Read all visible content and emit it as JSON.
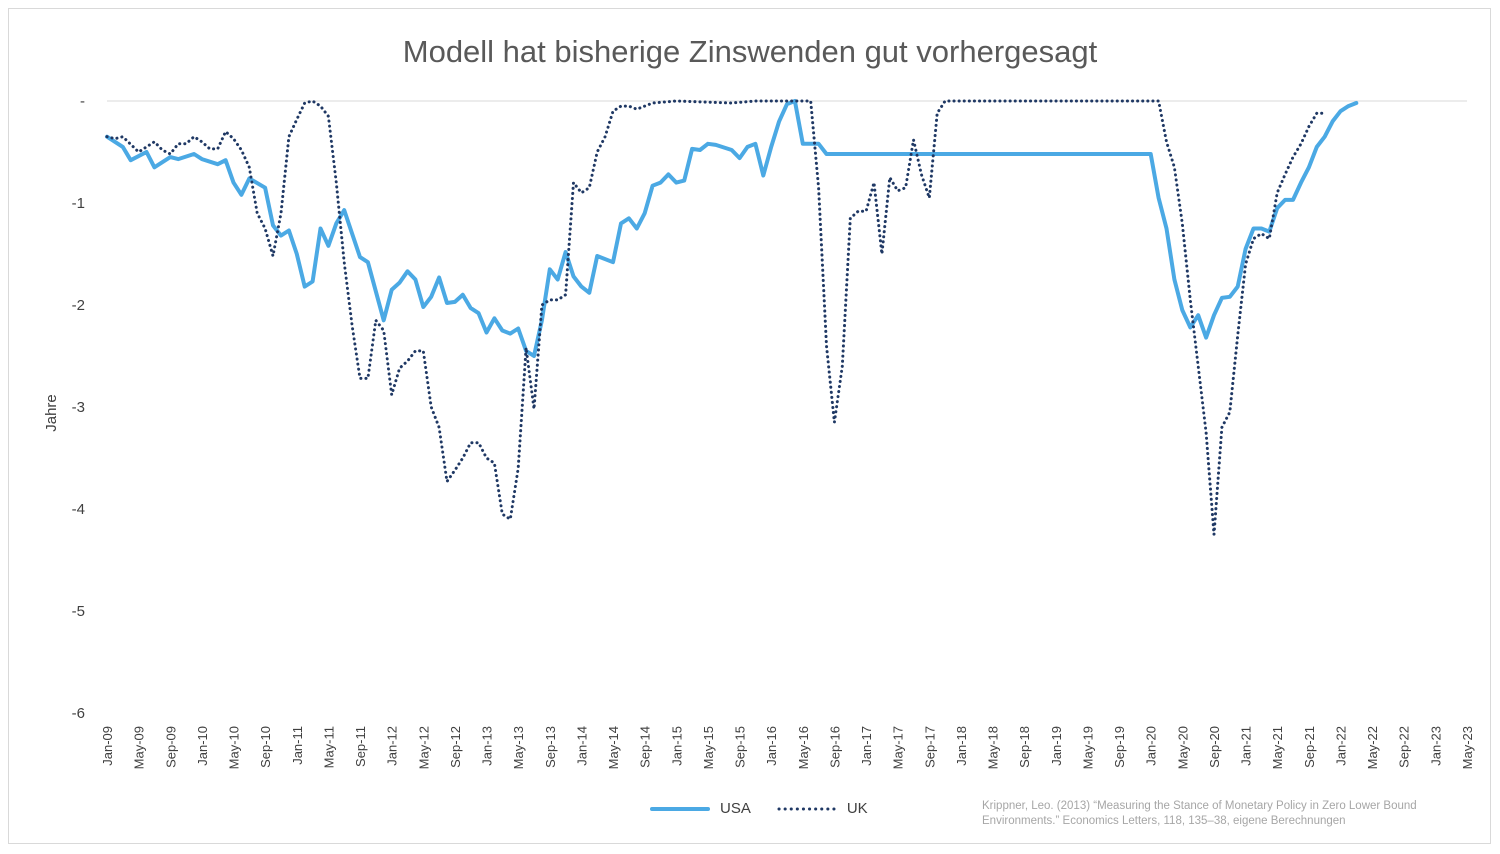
{
  "chart_data": {
    "type": "line",
    "title": "Modell hat bisherige Zinswenden gut vorhergesagt",
    "ylabel": "Jahre",
    "xlabel": "",
    "ylim": [
      -6,
      0
    ],
    "y_ticks": [
      0,
      -1,
      -2,
      -3,
      -4,
      -5,
      -6
    ],
    "y_tick_labels": [
      "-",
      "-1",
      "-2",
      "-3",
      "-4",
      "-5",
      "-6"
    ],
    "x_tick_labels": [
      "Jan-09",
      "May-09",
      "Sep-09",
      "Jan-10",
      "May-10",
      "Sep-10",
      "Jan-11",
      "May-11",
      "Sep-11",
      "Jan-12",
      "May-12",
      "Sep-12",
      "Jan-13",
      "May-13",
      "Sep-13",
      "Jan-14",
      "May-14",
      "Sep-14",
      "Jan-15",
      "May-15",
      "Sep-15",
      "Jan-16",
      "May-16",
      "Sep-16",
      "Jan-17",
      "May-17",
      "Sep-17",
      "Jan-18",
      "May-18",
      "Sep-18",
      "Jan-19",
      "May-19",
      "Sep-19",
      "Jan-20",
      "May-20",
      "Sep-20",
      "Jan-21",
      "May-21",
      "Sep-21",
      "Jan-22",
      "May-22",
      "Sep-22",
      "Jan-23",
      "May-23"
    ],
    "x_range": [
      "Jan-09",
      "May-23"
    ],
    "grid": "baseline only",
    "legend_position": "bottom-center",
    "series": [
      {
        "name": "USA",
        "color": "#4ba9e4",
        "style": "solid",
        "points": [
          [
            "Jan-09",
            -0.35
          ],
          [
            "Mar-09",
            -0.45
          ],
          [
            "Apr-09",
            -0.58
          ],
          [
            "Jun-09",
            -0.5
          ],
          [
            "Jul-09",
            -0.65
          ],
          [
            "Sep-09",
            -0.55
          ],
          [
            "Oct-09",
            -0.57
          ],
          [
            "Dec-09",
            -0.52
          ],
          [
            "Jan-10",
            -0.57
          ],
          [
            "Mar-10",
            -0.62
          ],
          [
            "Apr-10",
            -0.58
          ],
          [
            "May-10",
            -0.8
          ],
          [
            "Jun-10",
            -0.92
          ],
          [
            "Jul-10",
            -0.76
          ],
          [
            "Sep-10",
            -0.85
          ],
          [
            "Oct-10",
            -1.22
          ],
          [
            "Nov-10",
            -1.32
          ],
          [
            "Dec-10",
            -1.27
          ],
          [
            "Jan-11",
            -1.5
          ],
          [
            "Feb-11",
            -1.82
          ],
          [
            "Mar-11",
            -1.77
          ],
          [
            "Apr-11",
            -1.25
          ],
          [
            "May-11",
            -1.42
          ],
          [
            "Jun-11",
            -1.2
          ],
          [
            "Jul-11",
            -1.07
          ],
          [
            "Aug-11",
            -1.3
          ],
          [
            "Sep-11",
            -1.53
          ],
          [
            "Oct-11",
            -1.58
          ],
          [
            "Dec-11",
            -2.15
          ],
          [
            "Jan-12",
            -1.85
          ],
          [
            "Feb-12",
            -1.78
          ],
          [
            "Mar-12",
            -1.67
          ],
          [
            "Apr-12",
            -1.75
          ],
          [
            "May-12",
            -2.02
          ],
          [
            "Jun-12",
            -1.92
          ],
          [
            "Jul-12",
            -1.73
          ],
          [
            "Aug-12",
            -1.98
          ],
          [
            "Sep-12",
            -1.97
          ],
          [
            "Oct-12",
            -1.9
          ],
          [
            "Nov-12",
            -2.03
          ],
          [
            "Dec-12",
            -2.08
          ],
          [
            "Jan-13",
            -2.27
          ],
          [
            "Feb-13",
            -2.13
          ],
          [
            "Mar-13",
            -2.25
          ],
          [
            "Apr-13",
            -2.28
          ],
          [
            "May-13",
            -2.23
          ],
          [
            "Jun-13",
            -2.45
          ],
          [
            "Jul-13",
            -2.5
          ],
          [
            "Aug-13",
            -2.15
          ],
          [
            "Sep-13",
            -1.65
          ],
          [
            "Oct-13",
            -1.75
          ],
          [
            "Nov-13",
            -1.48
          ],
          [
            "Dec-13",
            -1.72
          ],
          [
            "Jan-14",
            -1.82
          ],
          [
            "Feb-14",
            -1.88
          ],
          [
            "Mar-14",
            -1.52
          ],
          [
            "May-14",
            -1.58
          ],
          [
            "Jun-14",
            -1.2
          ],
          [
            "Jul-14",
            -1.15
          ],
          [
            "Aug-14",
            -1.25
          ],
          [
            "Sep-14",
            -1.1
          ],
          [
            "Oct-14",
            -0.83
          ],
          [
            "Nov-14",
            -0.8
          ],
          [
            "Dec-14",
            -0.72
          ],
          [
            "Jan-15",
            -0.8
          ],
          [
            "Feb-15",
            -0.78
          ],
          [
            "Mar-15",
            -0.47
          ],
          [
            "Apr-15",
            -0.48
          ],
          [
            "May-15",
            -0.42
          ],
          [
            "Jun-15",
            -0.43
          ],
          [
            "Aug-15",
            -0.48
          ],
          [
            "Sep-15",
            -0.56
          ],
          [
            "Oct-15",
            -0.45
          ],
          [
            "Nov-15",
            -0.42
          ],
          [
            "Dec-15",
            -0.73
          ],
          [
            "Jan-16",
            -0.45
          ],
          [
            "Feb-16",
            -0.2
          ],
          [
            "Mar-16",
            -0.03
          ],
          [
            "Apr-16",
            0
          ],
          [
            "May-16",
            -0.42
          ],
          [
            "Jul-16",
            -0.42
          ],
          [
            "Aug-16",
            -0.52
          ],
          [
            "Jan-20",
            -0.52
          ],
          [
            "Feb-20",
            -0.95
          ],
          [
            "Mar-20",
            -1.25
          ],
          [
            "Apr-20",
            -1.75
          ],
          [
            "May-20",
            -2.05
          ],
          [
            "Jun-20",
            -2.22
          ],
          [
            "Jul-20",
            -2.1
          ],
          [
            "Aug-20",
            -2.32
          ],
          [
            "Sep-20",
            -2.1
          ],
          [
            "Oct-20",
            -1.93
          ],
          [
            "Nov-20",
            -1.92
          ],
          [
            "Dec-20",
            -1.82
          ],
          [
            "Jan-21",
            -1.45
          ],
          [
            "Feb-21",
            -1.25
          ],
          [
            "Mar-21",
            -1.25
          ],
          [
            "Apr-21",
            -1.28
          ],
          [
            "May-21",
            -1.05
          ],
          [
            "Jun-21",
            -0.97
          ],
          [
            "Jul-21",
            -0.97
          ],
          [
            "Aug-21",
            -0.8
          ],
          [
            "Sep-21",
            -0.65
          ],
          [
            "Oct-21",
            -0.45
          ],
          [
            "Nov-21",
            -0.35
          ],
          [
            "Dec-21",
            -0.2
          ],
          [
            "Jan-22",
            -0.1
          ],
          [
            "Feb-22",
            -0.05
          ],
          [
            "Mar-22",
            -0.02
          ]
        ]
      },
      {
        "name": "UK",
        "color": "#1f3864",
        "style": "dotted",
        "points": [
          [
            "Jan-09",
            -0.35
          ],
          [
            "Feb-09",
            -0.37
          ],
          [
            "Mar-09",
            -0.35
          ],
          [
            "May-09",
            -0.5
          ],
          [
            "Jun-09",
            -0.45
          ],
          [
            "Jul-09",
            -0.4
          ],
          [
            "Aug-09",
            -0.48
          ],
          [
            "Sep-09",
            -0.52
          ],
          [
            "Oct-09",
            -0.42
          ],
          [
            "Nov-09",
            -0.42
          ],
          [
            "Dec-09",
            -0.35
          ],
          [
            "Jan-10",
            -0.4
          ],
          [
            "Feb-10",
            -0.47
          ],
          [
            "Mar-10",
            -0.47
          ],
          [
            "Apr-10",
            -0.3
          ],
          [
            "May-10",
            -0.37
          ],
          [
            "Jun-10",
            -0.48
          ],
          [
            "Jul-10",
            -0.65
          ],
          [
            "Aug-10",
            -1.1
          ],
          [
            "Sep-10",
            -1.25
          ],
          [
            "Oct-10",
            -1.52
          ],
          [
            "Nov-10",
            -1.1
          ],
          [
            "Dec-10",
            -0.35
          ],
          [
            "Jan-11",
            -0.18
          ],
          [
            "Feb-11",
            -0.02
          ],
          [
            "Mar-11",
            0
          ],
          [
            "Apr-11",
            -0.05
          ],
          [
            "May-11",
            -0.15
          ],
          [
            "Jun-11",
            -0.8
          ],
          [
            "Jul-11",
            -1.58
          ],
          [
            "Aug-11",
            -2.2
          ],
          [
            "Sep-11",
            -2.72
          ],
          [
            "Oct-11",
            -2.72
          ],
          [
            "Nov-11",
            -2.15
          ],
          [
            "Dec-11",
            -2.25
          ],
          [
            "Jan-12",
            -2.88
          ],
          [
            "Feb-12",
            -2.62
          ],
          [
            "Mar-12",
            -2.55
          ],
          [
            "Apr-12",
            -2.45
          ],
          [
            "May-12",
            -2.45
          ],
          [
            "Jun-12",
            -3.0
          ],
          [
            "Jul-12",
            -3.2
          ],
          [
            "Aug-12",
            -3.73
          ],
          [
            "Sep-12",
            -3.62
          ],
          [
            "Oct-12",
            -3.5
          ],
          [
            "Nov-12",
            -3.35
          ],
          [
            "Dec-12",
            -3.35
          ],
          [
            "Jan-13",
            -3.5
          ],
          [
            "Feb-13",
            -3.55
          ],
          [
            "Mar-13",
            -4.05
          ],
          [
            "Apr-13",
            -4.1
          ],
          [
            "May-13",
            -3.6
          ],
          [
            "Jun-13",
            -2.42
          ],
          [
            "Jul-13",
            -3.02
          ],
          [
            "Aug-13",
            -2.0
          ],
          [
            "Sep-13",
            -1.95
          ],
          [
            "Oct-13",
            -1.95
          ],
          [
            "Nov-13",
            -1.9
          ],
          [
            "Dec-13",
            -0.8
          ],
          [
            "Jan-14",
            -0.9
          ],
          [
            "Feb-14",
            -0.85
          ],
          [
            "Mar-14",
            -0.5
          ],
          [
            "Apr-14",
            -0.35
          ],
          [
            "May-14",
            -0.1
          ],
          [
            "Jun-14",
            -0.05
          ],
          [
            "Jul-14",
            -0.05
          ],
          [
            "Aug-14",
            -0.08
          ],
          [
            "Sep-14",
            -0.05
          ],
          [
            "Oct-14",
            -0.02
          ],
          [
            "Jan-15",
            0
          ],
          [
            "Aug-15",
            -0.02
          ],
          [
            "Nov-15",
            0
          ],
          [
            "Jun-16",
            0
          ],
          [
            "Jul-16",
            -0.85
          ],
          [
            "Aug-16",
            -2.4
          ],
          [
            "Sep-16",
            -3.15
          ],
          [
            "Oct-16",
            -2.6
          ],
          [
            "Nov-16",
            -1.15
          ],
          [
            "Dec-16",
            -1.08
          ],
          [
            "Jan-17",
            -1.08
          ],
          [
            "Feb-17",
            -0.8
          ],
          [
            "Mar-17",
            -1.5
          ],
          [
            "Apr-17",
            -0.75
          ],
          [
            "May-17",
            -0.88
          ],
          [
            "Jun-17",
            -0.85
          ],
          [
            "Jul-17",
            -0.38
          ],
          [
            "Aug-17",
            -0.72
          ],
          [
            "Sep-17",
            -0.95
          ],
          [
            "Oct-17",
            -0.12
          ],
          [
            "Nov-17",
            0
          ],
          [
            "Feb-20",
            0
          ],
          [
            "Mar-20",
            -0.4
          ],
          [
            "Apr-20",
            -0.65
          ],
          [
            "May-20",
            -1.2
          ],
          [
            "Jun-20",
            -1.95
          ],
          [
            "Jul-20",
            -2.6
          ],
          [
            "Aug-20",
            -3.25
          ],
          [
            "Sep-20",
            -4.25
          ],
          [
            "Oct-20",
            -3.2
          ],
          [
            "Nov-20",
            -3.05
          ],
          [
            "Dec-20",
            -2.3
          ],
          [
            "Jan-21",
            -1.6
          ],
          [
            "Feb-21",
            -1.35
          ],
          [
            "Mar-21",
            -1.3
          ],
          [
            "Apr-21",
            -1.35
          ],
          [
            "May-21",
            -0.9
          ],
          [
            "Jun-21",
            -0.72
          ],
          [
            "Jul-21",
            -0.55
          ],
          [
            "Aug-21",
            -0.42
          ],
          [
            "Sep-21",
            -0.25
          ],
          [
            "Oct-21",
            -0.12
          ],
          [
            "Nov-21",
            -0.12
          ]
        ]
      }
    ]
  },
  "legend": {
    "usa_label": "USA",
    "uk_label": "UK"
  },
  "source": {
    "line1": "Krippner, Leo. (2013) “Measuring the Stance of Monetary Policy in Zero Lower Bound",
    "line2": "Environments.” Economics Letters, 118, 135–38, eigene Berechnungen"
  }
}
